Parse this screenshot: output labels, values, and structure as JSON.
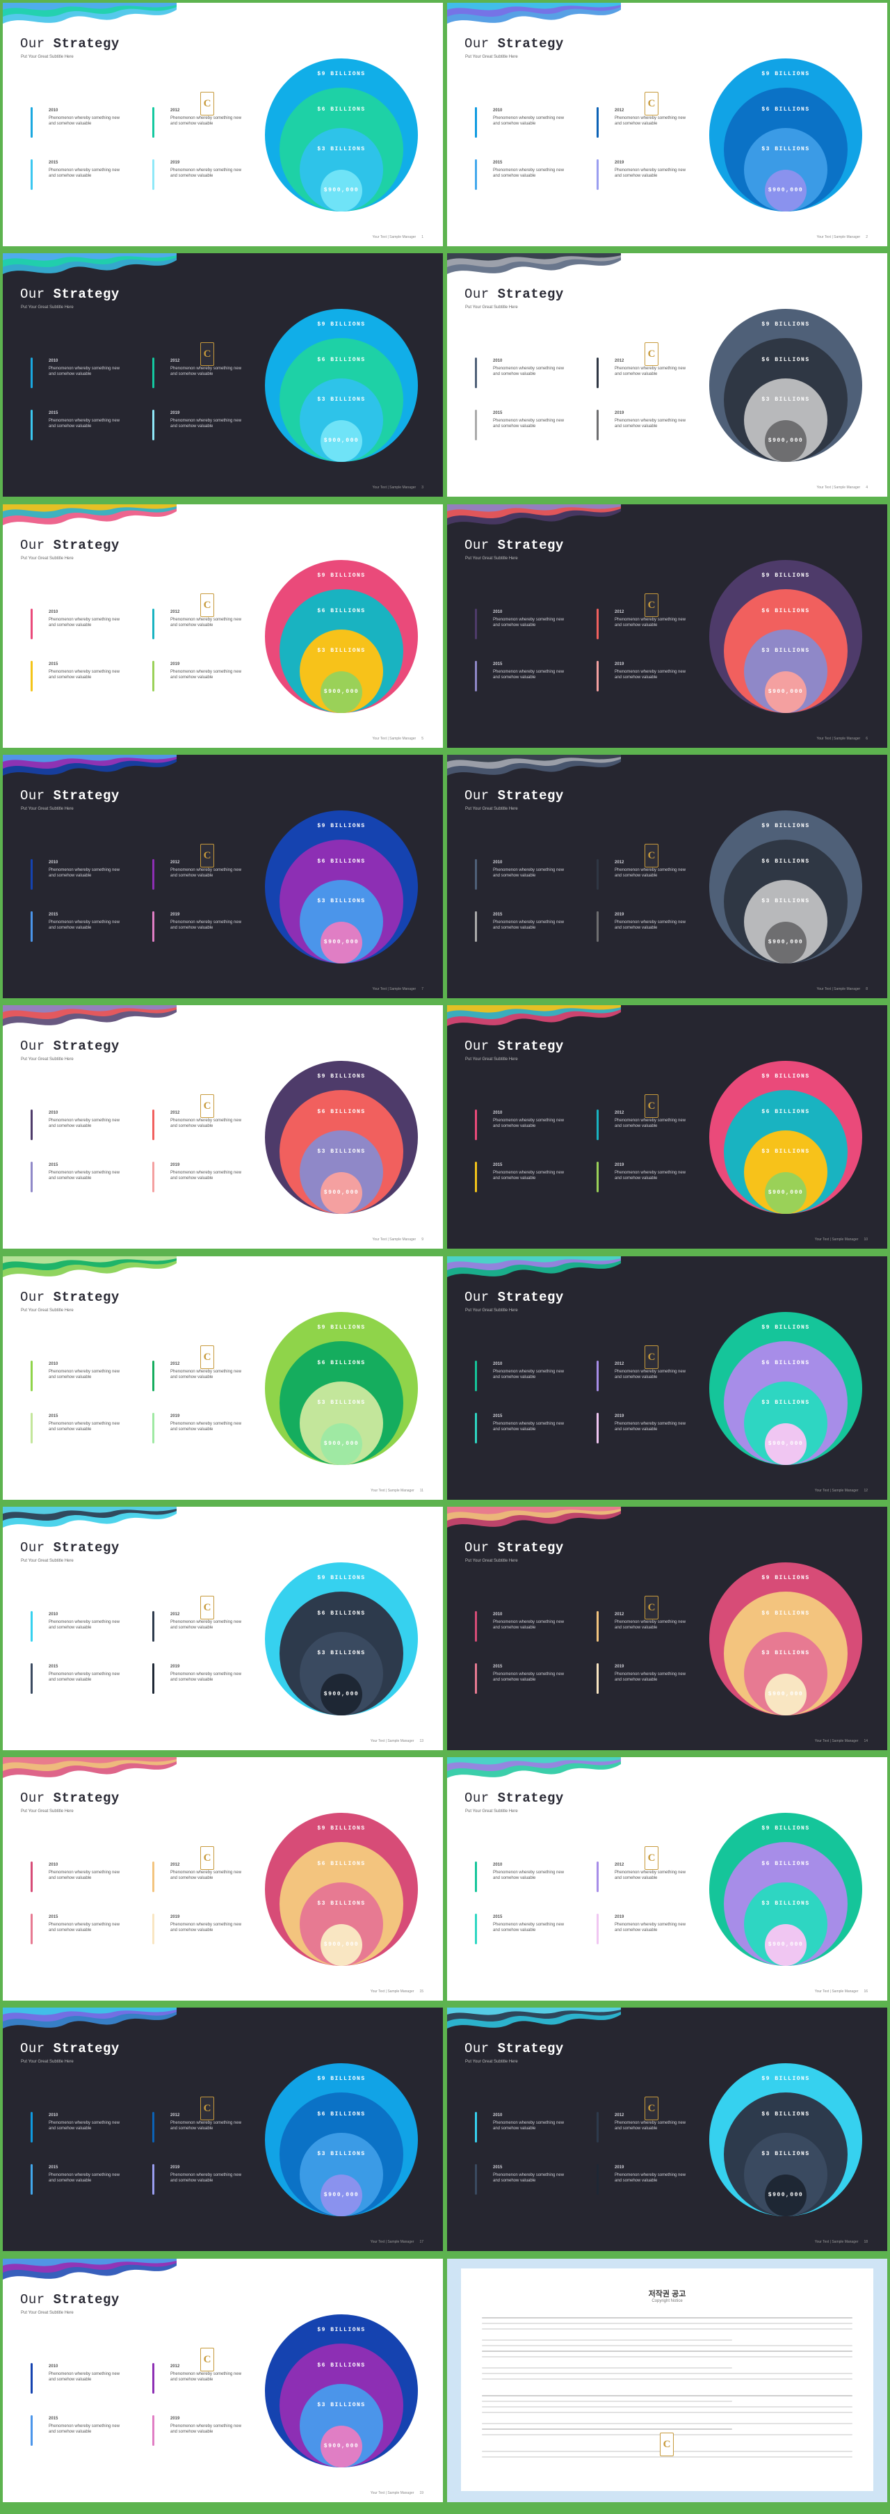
{
  "common": {
    "title_light": "Our ",
    "title_bold": "Strategy",
    "subtitle": "Put Your Great Subtitle Here",
    "logo_letter": "C",
    "footer_text": "Your Text | Sample Manager",
    "item_desc": "Phenomenon whereby something new and somehow valuable",
    "circle_labels": [
      "$9 BILLIONS",
      "$6 BILLIONS",
      "$3 BILLIONS",
      "$900,000"
    ]
  },
  "slides": [
    {
      "theme": "light",
      "page": "1",
      "wave": [
        "#37c0e8",
        "#1fd1a8",
        "#54a8f2"
      ],
      "colors": [
        "#11aee8",
        "#1ed1a6",
        "#2ec3e9",
        "#6fe3f7"
      ],
      "bars": [
        "#1aa8e0",
        "#14c9a0",
        "#3bc7f0",
        "#8fe8f8"
      ],
      "years": [
        "2010",
        "2012",
        "2015",
        "2019"
      ]
    },
    {
      "theme": "light",
      "page": "2",
      "wave": [
        "#3b8fe0",
        "#7a6ee6",
        "#3cc6e8"
      ],
      "colors": [
        "#11a3e6",
        "#0b72c6",
        "#3b9be6",
        "#8a92ee"
      ],
      "bars": [
        "#0f9ae0",
        "#0b62b6",
        "#42a8ec",
        "#9a9ef0"
      ],
      "years": [
        "2010",
        "2012",
        "2015",
        "2019"
      ]
    },
    {
      "theme": "dark",
      "page": "3",
      "wave": [
        "#37c0e8",
        "#1fd1a8",
        "#54a8f2"
      ],
      "colors": [
        "#11aee8",
        "#1ed1a6",
        "#2ec3e9",
        "#6fe3f7"
      ],
      "bars": [
        "#1aa8e0",
        "#14c9a0",
        "#3bc7f0",
        "#8fe8f8"
      ],
      "years": [
        "2010",
        "2012",
        "2015",
        "2019"
      ]
    },
    {
      "theme": "light",
      "page": "4",
      "wave": [
        "#4f5e78",
        "#a3a6ae",
        "#2f3744"
      ],
      "colors": [
        "#4f6078",
        "#2f3744",
        "#b8b9bb",
        "#6e6e70"
      ],
      "bars": [
        "#4f6078",
        "#2f3744",
        "#aaaaaa",
        "#6e6e70"
      ],
      "years": [
        "2010",
        "2012",
        "2015",
        "2019"
      ]
    },
    {
      "theme": "light",
      "page": "5",
      "wave": [
        "#ea4a7a",
        "#2bb9c4",
        "#f7c214"
      ],
      "colors": [
        "#ea4a7a",
        "#19b3c1",
        "#f7c21a",
        "#9ad158"
      ],
      "bars": [
        "#ea4a7a",
        "#19b3c1",
        "#f3c419",
        "#9ad158"
      ],
      "years": [
        "2010",
        "2012",
        "2015",
        "2019"
      ]
    },
    {
      "theme": "dark",
      "page": "6",
      "wave": [
        "#4e3b6a",
        "#f15a5a",
        "#8c84c8"
      ],
      "colors": [
        "#4e3b6a",
        "#f1605e",
        "#8f88c8",
        "#f4a0a0"
      ],
      "bars": [
        "#4e3b6a",
        "#f1605e",
        "#8f88c8",
        "#f4a0a0"
      ],
      "years": [
        "2010",
        "2012",
        "2015",
        "2019"
      ]
    },
    {
      "theme": "dark",
      "page": "7",
      "wave": [
        "#1543b0",
        "#9b32b6",
        "#4aa0ea"
      ],
      "colors": [
        "#1543b0",
        "#8d2fb4",
        "#4b95ea",
        "#e07ec4"
      ],
      "bars": [
        "#1543b0",
        "#8d2fb4",
        "#4b95ea",
        "#e07ec4"
      ],
      "years": [
        "2010",
        "2012",
        "2015",
        "2019"
      ]
    },
    {
      "theme": "dark",
      "page": "8",
      "wave": [
        "#4f5e78",
        "#a3a6ae",
        "#2f3744"
      ],
      "colors": [
        "#4f6078",
        "#2f3744",
        "#b8b9bb",
        "#6e6e70"
      ],
      "bars": [
        "#4f6078",
        "#2f3744",
        "#aaaaaa",
        "#6e6e70"
      ],
      "years": [
        "2010",
        "2012",
        "2015",
        "2019"
      ]
    },
    {
      "theme": "light",
      "page": "9",
      "wave": [
        "#4e3b6a",
        "#f15a5a",
        "#8c84c8"
      ],
      "colors": [
        "#4e3b6a",
        "#f1605e",
        "#8f88c8",
        "#f4a0a0"
      ],
      "bars": [
        "#4e3b6a",
        "#f1605e",
        "#8f88c8",
        "#f4a0a0"
      ],
      "years": [
        "2010",
        "2012",
        "2015",
        "2019"
      ]
    },
    {
      "theme": "dark",
      "page": "10",
      "wave": [
        "#ea4a7a",
        "#2bb9c4",
        "#f7c214"
      ],
      "colors": [
        "#ea4a7a",
        "#19b3c1",
        "#f7c21a",
        "#9ad158"
      ],
      "bars": [
        "#ea4a7a",
        "#19b3c1",
        "#f3c419",
        "#9ad158"
      ],
      "years": [
        "2010",
        "2012",
        "2015",
        "2019"
      ]
    },
    {
      "theme": "light",
      "page": "11",
      "wave": [
        "#7ccd43",
        "#13b06a",
        "#c4e59b"
      ],
      "colors": [
        "#8fd44a",
        "#15ad5e",
        "#c3e69b",
        "#9fe9a3"
      ],
      "bars": [
        "#8fd44a",
        "#15ad5e",
        "#c3e69b",
        "#9fe9a3"
      ],
      "years": [
        "2010",
        "2012",
        "2015",
        "2019"
      ]
    },
    {
      "theme": "dark",
      "page": "12",
      "wave": [
        "#19c69b",
        "#a07ee4",
        "#44dac4"
      ],
      "colors": [
        "#15c59a",
        "#a78de8",
        "#2ed6c2",
        "#f0c6f2"
      ],
      "bars": [
        "#15c59a",
        "#a78de8",
        "#2ed6c2",
        "#f0c6f2"
      ],
      "years": [
        "2010",
        "2012",
        "2015",
        "2019"
      ]
    },
    {
      "theme": "light",
      "page": "13",
      "wave": [
        "#2ecbe8",
        "#2e3a4e",
        "#5bdcf3"
      ],
      "colors": [
        "#36d1ef",
        "#2d3a4c",
        "#3a4a60",
        "#1e2734"
      ],
      "bars": [
        "#36d1ef",
        "#2d3a4c",
        "#3a4a60",
        "#1e2734"
      ],
      "years": [
        "2010",
        "2012",
        "2015",
        "2019"
      ]
    },
    {
      "theme": "dark",
      "page": "14",
      "wave": [
        "#d84a74",
        "#f0c37c",
        "#e8768f"
      ],
      "colors": [
        "#d74c77",
        "#f3c47e",
        "#e77a92",
        "#f9e6c2"
      ],
      "bars": [
        "#d74c77",
        "#f3c47e",
        "#e77a92",
        "#f9e6c2"
      ],
      "years": [
        "2010",
        "2012",
        "2015",
        "2019"
      ]
    },
    {
      "theme": "light",
      "page": "15",
      "wave": [
        "#d84a74",
        "#f0c37c",
        "#e8768f"
      ],
      "colors": [
        "#d74c77",
        "#f3c47e",
        "#e77a92",
        "#f9e6c2"
      ],
      "bars": [
        "#d74c77",
        "#f3c47e",
        "#e77a92",
        "#f9e6c2"
      ],
      "years": [
        "2010",
        "2012",
        "2015",
        "2019"
      ]
    },
    {
      "theme": "light",
      "page": "16",
      "wave": [
        "#19c69b",
        "#a07ee4",
        "#44dac4"
      ],
      "colors": [
        "#15c59a",
        "#a78de8",
        "#2ed6c2",
        "#f0c6f2"
      ],
      "bars": [
        "#15c59a",
        "#a78de8",
        "#2ed6c2",
        "#f0c6f2"
      ],
      "years": [
        "2010",
        "2012",
        "2015",
        "2019"
      ]
    },
    {
      "theme": "dark",
      "page": "17",
      "wave": [
        "#3b8fe0",
        "#7a6ee6",
        "#3cc6e8"
      ],
      "colors": [
        "#11a3e6",
        "#0b72c6",
        "#3b9be6",
        "#8a92ee"
      ],
      "bars": [
        "#0f9ae0",
        "#0b62b6",
        "#42a8ec",
        "#9a9ef0"
      ],
      "years": [
        "2010",
        "2012",
        "2015",
        "2019"
      ]
    },
    {
      "theme": "dark",
      "page": "18",
      "wave": [
        "#2ecbe8",
        "#2e3a4e",
        "#5bdcf3"
      ],
      "colors": [
        "#36d1ef",
        "#2d3a4c",
        "#3a4a60",
        "#1e2734"
      ],
      "bars": [
        "#36d1ef",
        "#2d3a4c",
        "#3a4a60",
        "#1e2734"
      ],
      "years": [
        "2010",
        "2012",
        "2015",
        "2019"
      ]
    },
    {
      "theme": "light",
      "page": "19",
      "wave": [
        "#1543b0",
        "#9b32b6",
        "#4aa0ea"
      ],
      "colors": [
        "#1543b0",
        "#8d2fb4",
        "#4b95ea",
        "#e07ec4"
      ],
      "bars": [
        "#1543b0",
        "#8d2fb4",
        "#4b95ea",
        "#e07ec4"
      ],
      "years": [
        "2010",
        "2012",
        "2015",
        "2019"
      ]
    }
  ],
  "notice": {
    "title": "저작권 공고",
    "subtitle": "Copyright Notice"
  }
}
